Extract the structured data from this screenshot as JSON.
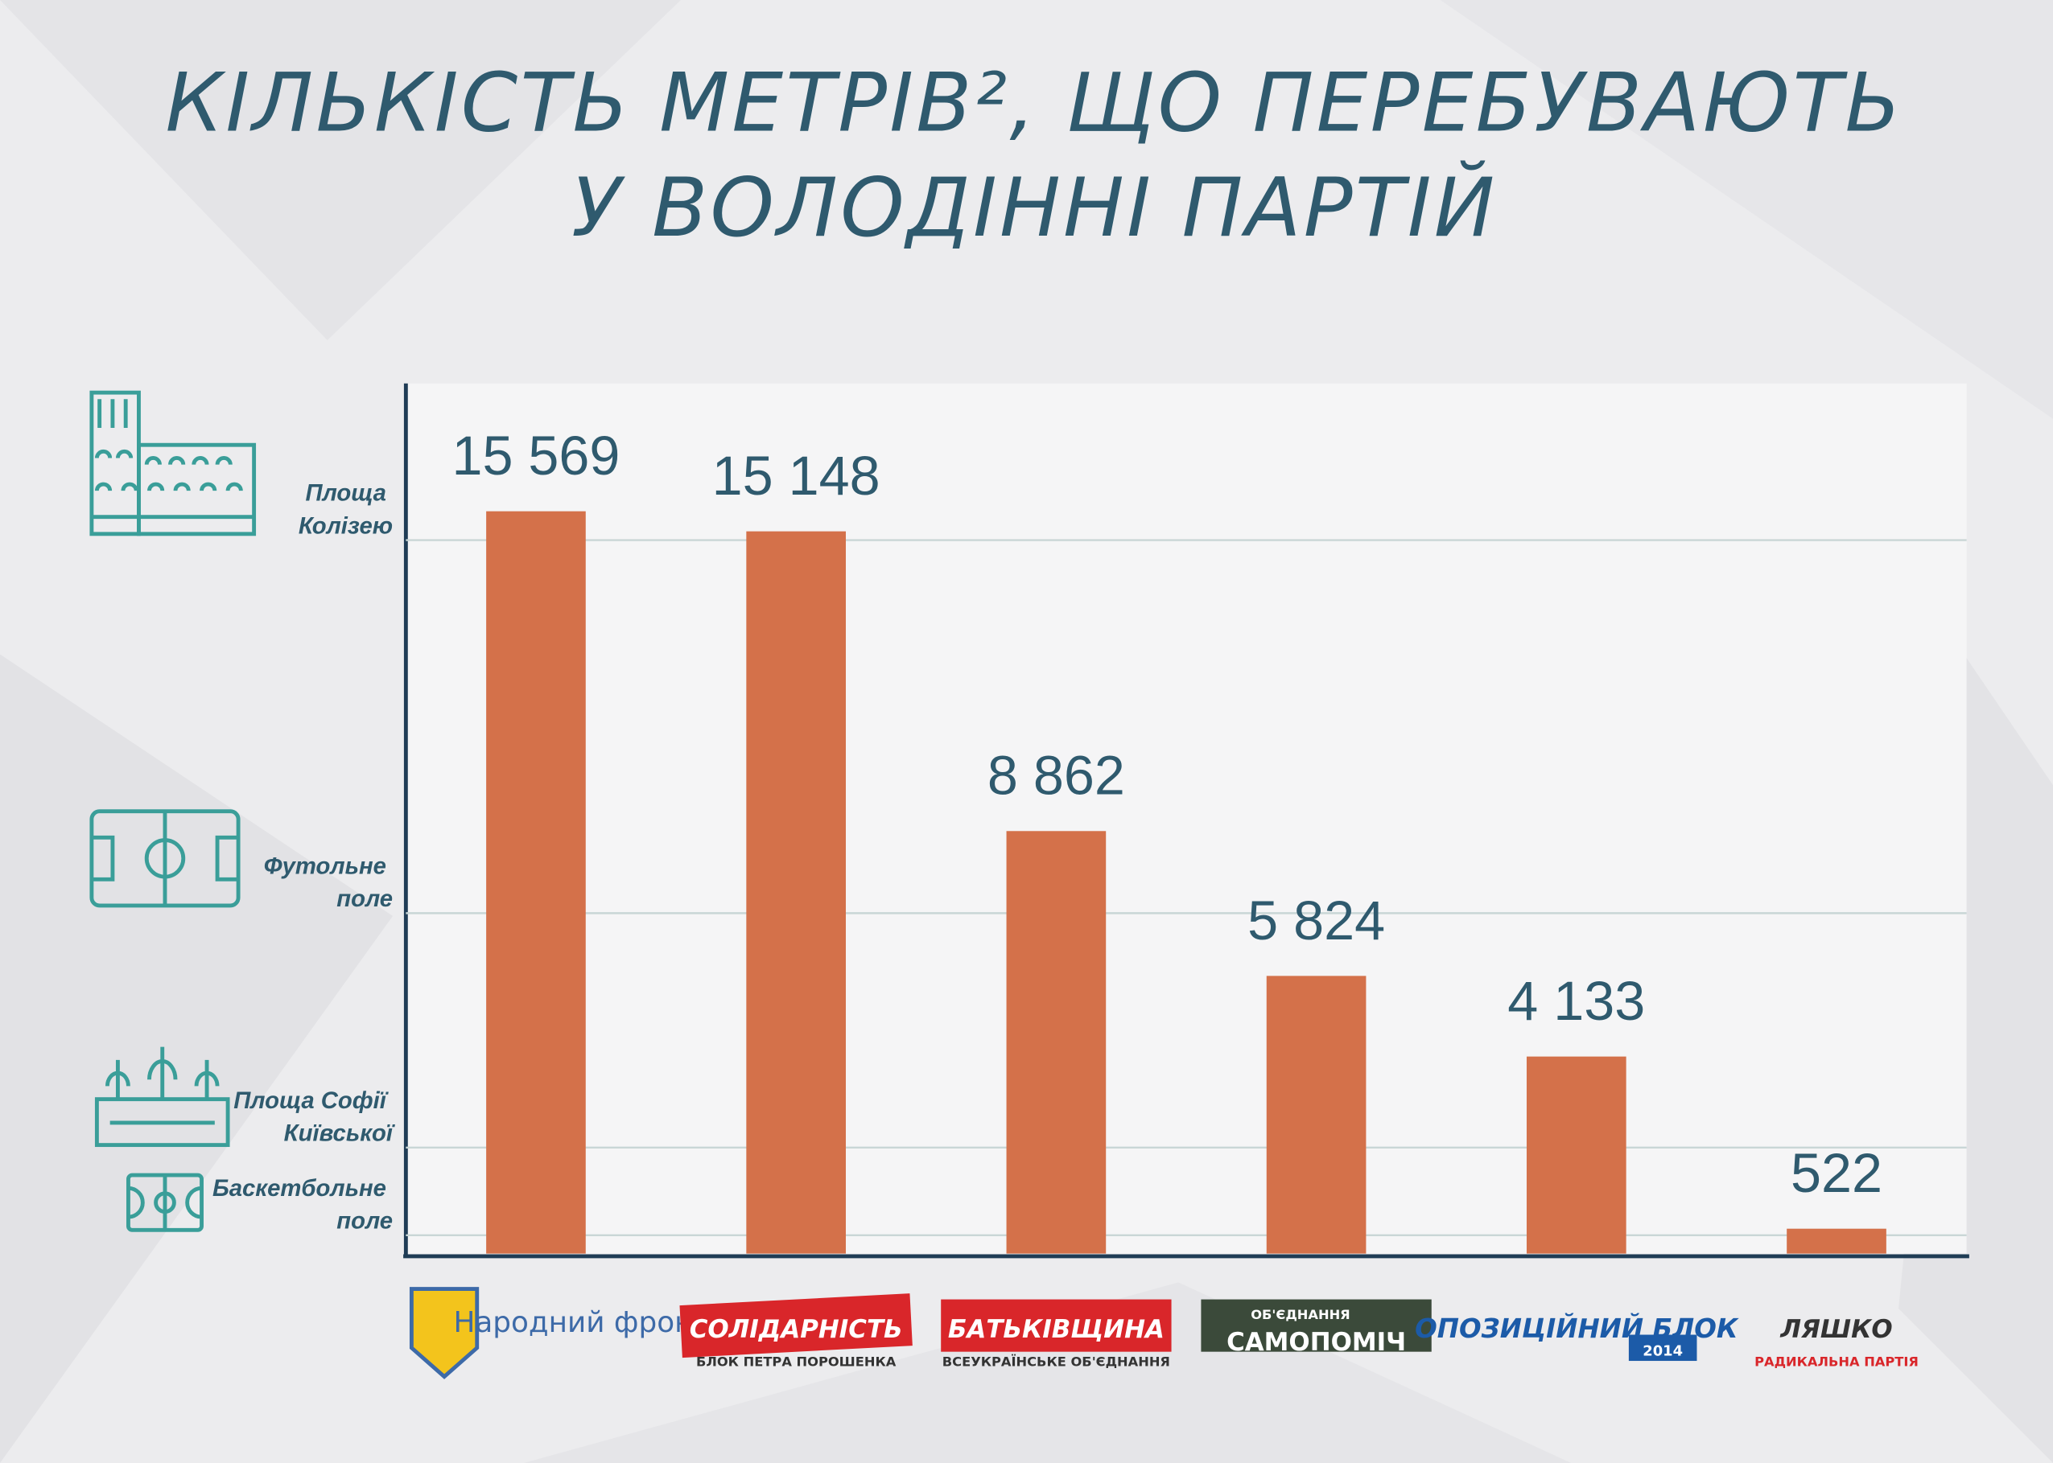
{
  "chart_data": {
    "type": "bar",
    "title": [
      "КІЛЬКІСТЬ МЕТРІВ², ЩО ПЕРЕБУВАЮТЬ",
      "У ВОЛОДІННІ ПАРТІЙ"
    ],
    "categories": [
      "Народний фронт",
      "СОЛІДАРНІСТЬ",
      "БАТЬКІВЩИНА",
      "САМОПОМІЧ",
      "ОПОЗИЦІЙНИЙ БЛОК",
      "ЛЯШКО"
    ],
    "category_subtexts": [
      null,
      "БЛОК ПЕТРА ПОРОШЕНКА",
      "ВСЕУКРАЇНСЬКЕ ОБ'ЄДНАННЯ",
      "ОБ'ЄДНАННЯ",
      "2014",
      "РАДИКАЛЬНА ПАРТІЯ"
    ],
    "values": [
      15569,
      15148,
      8862,
      5824,
      4133,
      522
    ],
    "value_labels": [
      "15 569",
      "15 148",
      "8 862",
      "5 824",
      "4 133",
      "522"
    ],
    "color": "#d4714a",
    "ylim": [
      0,
      18250
    ],
    "yticks": [
      {
        "value": 385,
        "label": "Баскетбольне поле"
      },
      {
        "value": 2224,
        "label": "Площа Софії Київської"
      },
      {
        "value": 7140,
        "label": "Футольне поле"
      },
      {
        "value": 14964,
        "label": "Площа Колізею"
      }
    ],
    "grid": true
  }
}
